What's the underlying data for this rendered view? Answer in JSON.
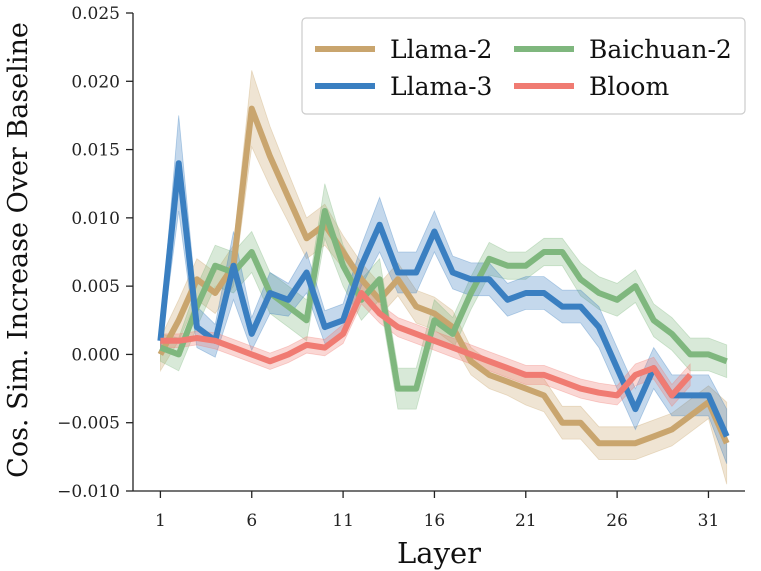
{
  "chart_data": {
    "type": "line",
    "title": "",
    "xlabel": "Layer",
    "ylabel": "Cos. Sim. Increase Over Baseline",
    "xlim": [
      -0.5,
      33
    ],
    "ylim": [
      -0.01,
      0.025
    ],
    "x_ticks": [
      1,
      6,
      11,
      16,
      21,
      26,
      31
    ],
    "x_tick_labels": [
      "1",
      "6",
      "11",
      "16",
      "21",
      "26",
      "31"
    ],
    "y_ticks": [
      -0.01,
      -0.005,
      0.0,
      0.005,
      0.01,
      0.015,
      0.02,
      0.025
    ],
    "y_tick_labels": [
      "−0.010",
      "−0.005",
      "0.000",
      "0.005",
      "0.010",
      "0.015",
      "0.020",
      "0.025"
    ],
    "grid": false,
    "legend_position": "top-right",
    "series": [
      {
        "name": "Llama-2",
        "color": "#c9a56e",
        "x": [
          1,
          2,
          3,
          4,
          5,
          6,
          7,
          8,
          9,
          10,
          11,
          12,
          13,
          14,
          15,
          16,
          17,
          18,
          19,
          20,
          21,
          22,
          23,
          24,
          25,
          26,
          27,
          28,
          29,
          30,
          31,
          32
        ],
        "values": [
          0.0,
          0.0025,
          0.0055,
          0.0045,
          0.0065,
          0.018,
          0.0145,
          0.0115,
          0.0085,
          0.0095,
          0.0075,
          0.0055,
          0.004,
          0.0055,
          0.0035,
          0.003,
          0.002,
          -0.0005,
          -0.0015,
          -0.002,
          -0.0025,
          -0.003,
          -0.005,
          -0.005,
          -0.0065,
          -0.0065,
          -0.0065,
          -0.006,
          -0.0055,
          -0.0045,
          -0.0035,
          -0.0065
        ],
        "band": [
          0.0012,
          0.0015,
          0.0015,
          0.0015,
          0.0015,
          0.0028,
          0.0022,
          0.0018,
          0.0015,
          0.0015,
          0.0012,
          0.0012,
          0.0012,
          0.0012,
          0.0012,
          0.0012,
          0.0012,
          0.001,
          0.001,
          0.001,
          0.0012,
          0.0012,
          0.0012,
          0.0012,
          0.0012,
          0.0012,
          0.0012,
          0.0012,
          0.0012,
          0.0012,
          0.0012,
          0.003
        ]
      },
      {
        "name": "Baichuan-2",
        "color": "#7fb77e",
        "x": [
          1,
          2,
          3,
          4,
          5,
          6,
          7,
          8,
          9,
          10,
          11,
          12,
          13,
          14,
          15,
          16,
          17,
          18,
          19,
          20,
          21,
          22,
          23,
          24,
          25,
          26,
          27,
          28,
          29,
          30,
          31,
          32
        ],
        "values": [
          0.0005,
          0.0,
          0.0035,
          0.0065,
          0.006,
          0.0075,
          0.0045,
          0.0035,
          0.0025,
          0.0105,
          0.0065,
          0.004,
          0.0055,
          -0.0025,
          -0.0025,
          0.0025,
          0.0015,
          0.0045,
          0.007,
          0.0065,
          0.0065,
          0.0075,
          0.0075,
          0.0055,
          0.0045,
          0.004,
          0.005,
          0.0025,
          0.0015,
          0.0,
          0.0,
          -0.0005
        ],
        "band": [
          0.001,
          0.0012,
          0.0015,
          0.0015,
          0.0015,
          0.0015,
          0.0015,
          0.0015,
          0.0015,
          0.002,
          0.0015,
          0.0015,
          0.0015,
          0.0015,
          0.0015,
          0.0015,
          0.0012,
          0.0012,
          0.0012,
          0.001,
          0.001,
          0.001,
          0.001,
          0.0012,
          0.0012,
          0.0012,
          0.0012,
          0.0012,
          0.0012,
          0.0012,
          0.0012,
          0.0012
        ]
      },
      {
        "name": "Llama-3",
        "color": "#3a7fc1",
        "x": [
          1,
          2,
          3,
          4,
          5,
          6,
          7,
          8,
          9,
          10,
          11,
          12,
          13,
          14,
          15,
          16,
          17,
          18,
          19,
          20,
          21,
          22,
          23,
          24,
          25,
          26,
          27,
          28,
          29,
          30,
          31,
          32
        ],
        "values": [
          0.001,
          0.014,
          0.002,
          0.001,
          0.0065,
          0.0015,
          0.0045,
          0.004,
          0.006,
          0.002,
          0.0025,
          0.0065,
          0.0095,
          0.006,
          0.006,
          0.009,
          0.006,
          0.0055,
          0.0055,
          0.004,
          0.0045,
          0.0045,
          0.0035,
          0.0035,
          0.002,
          -0.001,
          -0.004,
          -0.001,
          -0.003,
          -0.003,
          -0.003,
          -0.006
        ],
        "band": [
          0.0008,
          0.0035,
          0.0015,
          0.0012,
          0.0025,
          0.0012,
          0.0015,
          0.0012,
          0.0015,
          0.0012,
          0.0012,
          0.0015,
          0.002,
          0.0015,
          0.0015,
          0.0015,
          0.0012,
          0.0012,
          0.0012,
          0.0012,
          0.0012,
          0.0012,
          0.0012,
          0.0012,
          0.0015,
          0.0015,
          0.0015,
          0.0015,
          0.0015,
          0.0015,
          0.0015,
          0.002
        ]
      },
      {
        "name": "Bloom",
        "color": "#f07b72",
        "x": [
          1,
          2,
          3,
          4,
          5,
          6,
          7,
          8,
          9,
          10,
          11,
          12,
          13,
          14,
          15,
          16,
          17,
          18,
          19,
          20,
          21,
          22,
          23,
          24,
          25,
          26,
          27,
          28,
          29,
          30
        ],
        "values": [
          0.001,
          0.001,
          0.0012,
          0.001,
          0.0005,
          0.0,
          -0.0005,
          0.0,
          0.0007,
          0.0005,
          0.0015,
          0.0045,
          0.003,
          0.002,
          0.0015,
          0.001,
          0.0005,
          0.0,
          -0.0005,
          -0.001,
          -0.0015,
          -0.0015,
          -0.002,
          -0.0025,
          -0.0028,
          -0.003,
          -0.0015,
          -0.001,
          -0.003,
          -0.0015
        ],
        "band": [
          0.0005,
          0.0005,
          0.0005,
          0.0006,
          0.0006,
          0.0006,
          0.0006,
          0.0006,
          0.0006,
          0.0006,
          0.0007,
          0.0008,
          0.0007,
          0.0007,
          0.0007,
          0.0007,
          0.0007,
          0.0007,
          0.0007,
          0.0007,
          0.0007,
          0.0007,
          0.0007,
          0.0007,
          0.0007,
          0.0007,
          0.0008,
          0.0008,
          0.0008,
          0.0008
        ]
      }
    ]
  }
}
